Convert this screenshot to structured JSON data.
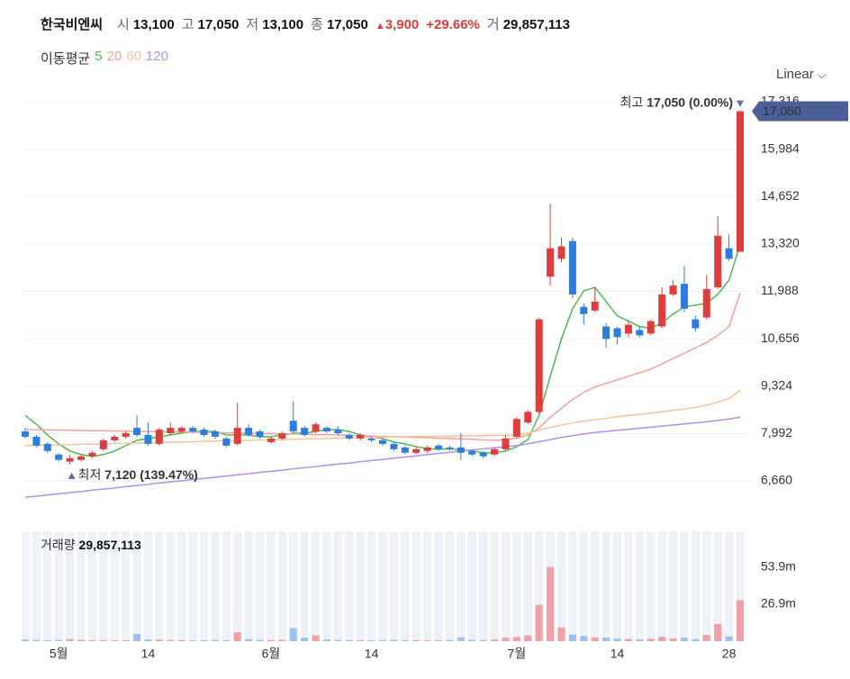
{
  "header": {
    "name": "한국비엔씨",
    "items": [
      {
        "label": "시",
        "value": "13,100"
      },
      {
        "label": "고",
        "value": "17,050"
      },
      {
        "label": "저",
        "value": "13,100"
      },
      {
        "label": "종",
        "value": "17,050"
      }
    ],
    "change": "3,900",
    "change_pct": "+29.66%",
    "volume_label": "거",
    "volume": "29,857,113"
  },
  "scale_toggle": "Linear",
  "chart_data": {
    "type": "candlestick",
    "ma_title": "이동평균",
    "categories": [
      null,
      null,
      null,
      "5월",
      null,
      null,
      null,
      null,
      null,
      null,
      null,
      "14",
      null,
      null,
      null,
      null,
      null,
      null,
      null,
      null,
      null,
      null,
      "6월",
      null,
      null,
      null,
      null,
      null,
      null,
      null,
      null,
      "14",
      null,
      null,
      null,
      null,
      null,
      null,
      null,
      null,
      null,
      null,
      null,
      null,
      "7월",
      null,
      null,
      null,
      null,
      null,
      null,
      null,
      null,
      "14",
      null,
      null,
      null,
      null,
      null,
      null,
      null,
      null,
      null,
      "28",
      null
    ],
    "open": [
      8050,
      7900,
      7700,
      7400,
      7200,
      7250,
      7350,
      7550,
      7800,
      7900,
      8150,
      7950,
      7700,
      8000,
      8050,
      8150,
      8100,
      8050,
      7850,
      7700,
      8150,
      8050,
      7750,
      7850,
      8350,
      8150,
      8050,
      8150,
      8100,
      7950,
      7850,
      7850,
      7800,
      7700,
      7600,
      7450,
      7500,
      7650,
      7600,
      7600,
      7500,
      7450,
      7400,
      7550,
      7900,
      8300,
      8600,
      12400,
      12900,
      13400,
      11550,
      11450,
      11000,
      10950,
      10800,
      10900,
      10800,
      11000,
      11900,
      12200,
      11200,
      11250,
      12100,
      13200,
      13100
    ],
    "high": [
      8150,
      7950,
      7750,
      7450,
      7400,
      7400,
      7500,
      7850,
      7950,
      8050,
      8500,
      8300,
      8150,
      8300,
      8200,
      8200,
      8150,
      8100,
      7900,
      8850,
      8250,
      8100,
      7900,
      8050,
      8900,
      8200,
      8300,
      8200,
      8200,
      8000,
      8000,
      7900,
      7850,
      7750,
      7650,
      7600,
      7650,
      7700,
      7650,
      8000,
      7550,
      7500,
      7600,
      7950,
      8450,
      8650,
      11250,
      14450,
      13500,
      13500,
      11650,
      12100,
      11100,
      11000,
      11150,
      11000,
      11200,
      12100,
      12300,
      12700,
      11300,
      12450,
      14100,
      13600,
      17050
    ],
    "low": [
      7850,
      7600,
      7450,
      7200,
      7120,
      7200,
      7300,
      7500,
      7750,
      7850,
      7900,
      7650,
      7650,
      7950,
      8000,
      8000,
      7900,
      7850,
      7600,
      7650,
      7900,
      7850,
      7700,
      7800,
      8000,
      7900,
      8000,
      8000,
      7950,
      7800,
      7800,
      7750,
      7650,
      7500,
      7400,
      7400,
      7450,
      7500,
      7500,
      7250,
      7350,
      7300,
      7350,
      7500,
      7850,
      8250,
      8550,
      12150,
      12800,
      11800,
      11050,
      11400,
      10400,
      10500,
      10700,
      10700,
      10750,
      10950,
      11850,
      11400,
      10850,
      11200,
      12050,
      12850,
      13100
    ],
    "close": [
      7900,
      7650,
      7500,
      7250,
      7300,
      7350,
      7450,
      7800,
      7900,
      8000,
      7950,
      7700,
      8100,
      8150,
      8150,
      8050,
      7950,
      7900,
      7650,
      8150,
      7950,
      7900,
      7850,
      8000,
      8050,
      7950,
      8250,
      8050,
      8000,
      7850,
      7950,
      7800,
      7700,
      7550,
      7450,
      7550,
      7600,
      7550,
      7550,
      7450,
      7400,
      7350,
      7550,
      7850,
      8400,
      8600,
      11200,
      13200,
      13250,
      11900,
      11350,
      11700,
      10650,
      10700,
      11050,
      10750,
      11150,
      11900,
      12150,
      11500,
      10950,
      12050,
      13550,
      12900,
      17050
    ],
    "up_color": "#e03c3c",
    "down_color": "#2b7de0",
    "volume_up_color": "#f0a0a6",
    "volume_down_color": "#9cc3f0",
    "series": [
      {
        "name": "5",
        "color": "#4cbb4c",
        "values": [
          8500,
          8250,
          7950,
          7700,
          7500,
          7400,
          7350,
          7400,
          7500,
          7650,
          7800,
          7850,
          7900,
          7950,
          8000,
          8050,
          8050,
          8050,
          7950,
          7950,
          7950,
          7900,
          7900,
          7950,
          8000,
          8000,
          8050,
          8100,
          8100,
          8050,
          7950,
          7900,
          7850,
          7750,
          7700,
          7620,
          7570,
          7550,
          7560,
          7530,
          7500,
          7450,
          7450,
          7500,
          7620,
          7820,
          8500,
          9600,
          10650,
          11500,
          12000,
          12100,
          11700,
          11300,
          11150,
          11000,
          10950,
          11100,
          11350,
          11550,
          11600,
          11650,
          11900,
          12300,
          13300
        ]
      },
      {
        "name": "20",
        "color": "#f4a0a0",
        "values": [
          8100,
          8100,
          8090,
          8090,
          8080,
          8080,
          8070,
          8070,
          8060,
          8060,
          8050,
          8050,
          8040,
          8040,
          8030,
          8030,
          8020,
          8020,
          8010,
          8010,
          8000,
          7990,
          7990,
          7980,
          7980,
          7970,
          7960,
          7960,
          7950,
          7940,
          7930,
          7920,
          7910,
          7900,
          7890,
          7880,
          7870,
          7860,
          7850,
          7840,
          7830,
          7810,
          7800,
          7820,
          7860,
          7950,
          8150,
          8450,
          8700,
          8950,
          9150,
          9300,
          9400,
          9500,
          9600,
          9700,
          9800,
          9950,
          10100,
          10250,
          10400,
          10550,
          10750,
          11000,
          11950
        ]
      },
      {
        "name": "60",
        "color": "#f5c49a",
        "values": [
          7650,
          7660,
          7660,
          7670,
          7680,
          7690,
          7690,
          7700,
          7710,
          7720,
          7720,
          7730,
          7740,
          7750,
          7750,
          7760,
          7770,
          7780,
          7780,
          7790,
          7800,
          7810,
          7810,
          7820,
          7830,
          7840,
          7840,
          7850,
          7860,
          7870,
          7870,
          7880,
          7890,
          7900,
          7900,
          7910,
          7910,
          7920,
          7920,
          7930,
          7930,
          7930,
          7940,
          7940,
          7950,
          8000,
          8080,
          8160,
          8230,
          8290,
          8340,
          8380,
          8420,
          8460,
          8500,
          8530,
          8560,
          8600,
          8640,
          8680,
          8730,
          8790,
          8870,
          8980,
          9200
        ]
      },
      {
        "name": "120",
        "color": "#b48cf0",
        "values": [
          6200,
          6230,
          6260,
          6300,
          6330,
          6360,
          6400,
          6430,
          6460,
          6500,
          6530,
          6560,
          6600,
          6630,
          6660,
          6700,
          6730,
          6760,
          6800,
          6830,
          6860,
          6900,
          6930,
          6960,
          7000,
          7030,
          7060,
          7100,
          7130,
          7160,
          7200,
          7230,
          7260,
          7300,
          7330,
          7360,
          7400,
          7430,
          7460,
          7500,
          7530,
          7560,
          7590,
          7620,
          7650,
          7700,
          7760,
          7820,
          7880,
          7930,
          7980,
          8020,
          8050,
          8080,
          8110,
          8140,
          8170,
          8200,
          8230,
          8260,
          8290,
          8320,
          8360,
          8400,
          8450
        ]
      }
    ],
    "ylim": [
      5622,
      17645
    ],
    "yticks": [
      {
        "value": 6660,
        "label": "6,660"
      },
      {
        "value": 7992,
        "label": "7,992"
      },
      {
        "value": 9324,
        "label": "9,324"
      },
      {
        "value": 10656,
        "label": "10,656"
      },
      {
        "value": 11988,
        "label": "11,988"
      },
      {
        "value": 13320,
        "label": "13,320"
      },
      {
        "value": 14652,
        "label": "14,652"
      },
      {
        "value": 15984,
        "label": "15,984"
      },
      {
        "value": 17316,
        "label": "17,316"
      }
    ],
    "grid": true,
    "high_annotation": {
      "label": "최고",
      "value": "17,050 (0.00%)",
      "index": 64
    },
    "low_annotation": {
      "label": "최저",
      "value": "7,120 (139.47%)",
      "index": 4
    },
    "last_price_label": "17,050",
    "last_price_color": "#4a5e97",
    "volume_title": "거래량",
    "volume_total": "29,857,113",
    "volume": [
      1200000,
      900000,
      700000,
      800000,
      1500000,
      900000,
      700000,
      800000,
      600000,
      700000,
      5200000,
      1300000,
      1100000,
      900000,
      800000,
      600000,
      700000,
      900000,
      700000,
      6500000,
      1500000,
      900000,
      800000,
      1000000,
      9500000,
      2500000,
      4200000,
      1200000,
      900000,
      800000,
      700000,
      600000,
      800000,
      900000,
      700000,
      800000,
      600000,
      700000,
      900000,
      2800000,
      1000000,
      900000,
      1200000,
      2500000,
      3000000,
      4200000,
      26500000,
      54000000,
      10000000,
      4800000,
      3800000,
      2800000,
      2600000,
      1800000,
      1600000,
      1400000,
      1800000,
      3200000,
      2000000,
      2500000,
      1500000,
      4500000,
      12500000,
      3500000,
      29857113
    ],
    "volume_ylim": [
      0,
      80000000
    ],
    "volume_ticks": [
      {
        "value": 26900000,
        "label": "26.9m"
      },
      {
        "value": 53900000,
        "label": "53.9m"
      }
    ]
  }
}
